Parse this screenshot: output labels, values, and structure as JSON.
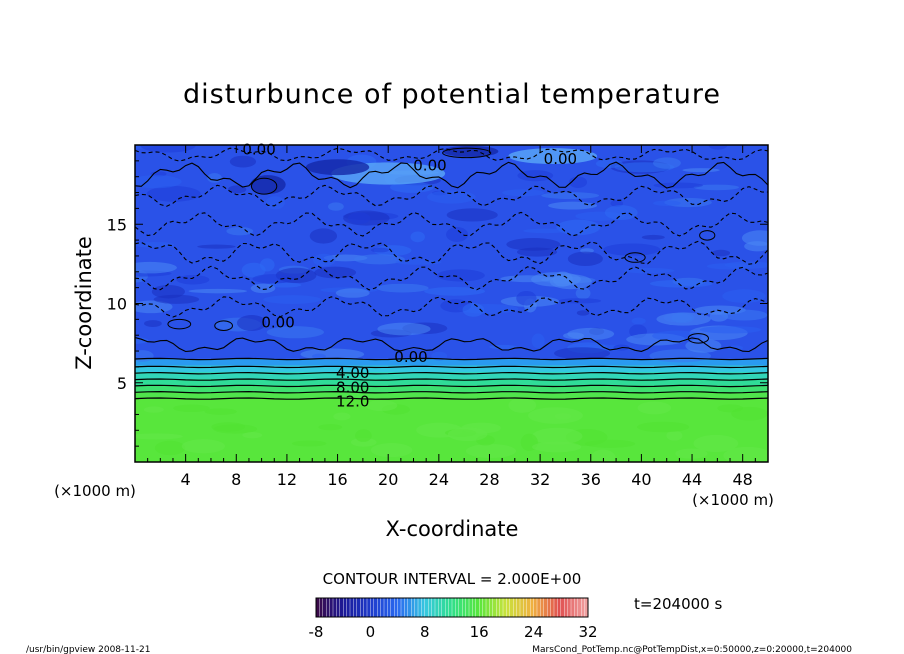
{
  "chart_data": {
    "type": "heatmap",
    "title": "disturbunce of potential temperature",
    "xlabel": "X-coordinate",
    "ylabel": "Z-coordinate",
    "x_unit": "(×1000 m)",
    "z_unit": "(×1000 m)",
    "xlim": [
      0,
      50
    ],
    "ylim": [
      0,
      20
    ],
    "x_ticks": [
      "4",
      "8",
      "12",
      "16",
      "20",
      "24",
      "28",
      "32",
      "36",
      "40",
      "44",
      "48"
    ],
    "y_ticks": [
      "5",
      "10",
      "15"
    ],
    "contour_interval_text": "CONTOUR INTERVAL = 2.000E+00",
    "time_text": "t=204000 s",
    "colorbar": {
      "min": -8,
      "max": 32,
      "ticks": [
        "-8",
        "0",
        "8",
        "16",
        "24",
        "32"
      ],
      "colors": [
        "#3a0a4a",
        "#1a1a9a",
        "#1e3ccc",
        "#2a6af0",
        "#36c8e0",
        "#30e08a",
        "#58e63c",
        "#c8e23c",
        "#f0b040",
        "#e05050",
        "#f0a0a0"
      ]
    },
    "field": [
      {
        "z": [
          0,
          4
        ],
        "value": 16,
        "color": "#58e63c"
      },
      {
        "z": [
          4,
          6.5
        ],
        "value": 8,
        "color": "#30d8a0"
      },
      {
        "z": [
          6.5,
          20
        ],
        "value": -2,
        "color": "#2a52e8"
      }
    ],
    "contour_labels": [
      "0.00",
      "0.00",
      "0.00",
      "0.00",
      "0.00",
      "4.00",
      "8.00",
      "12.0"
    ]
  },
  "footer": {
    "left": "/usr/bin/gpview   2008-11-21",
    "right": "MarsCond_PotTemp.nc@PotTempDist,x=0:50000,z=0:20000,t=204000"
  }
}
